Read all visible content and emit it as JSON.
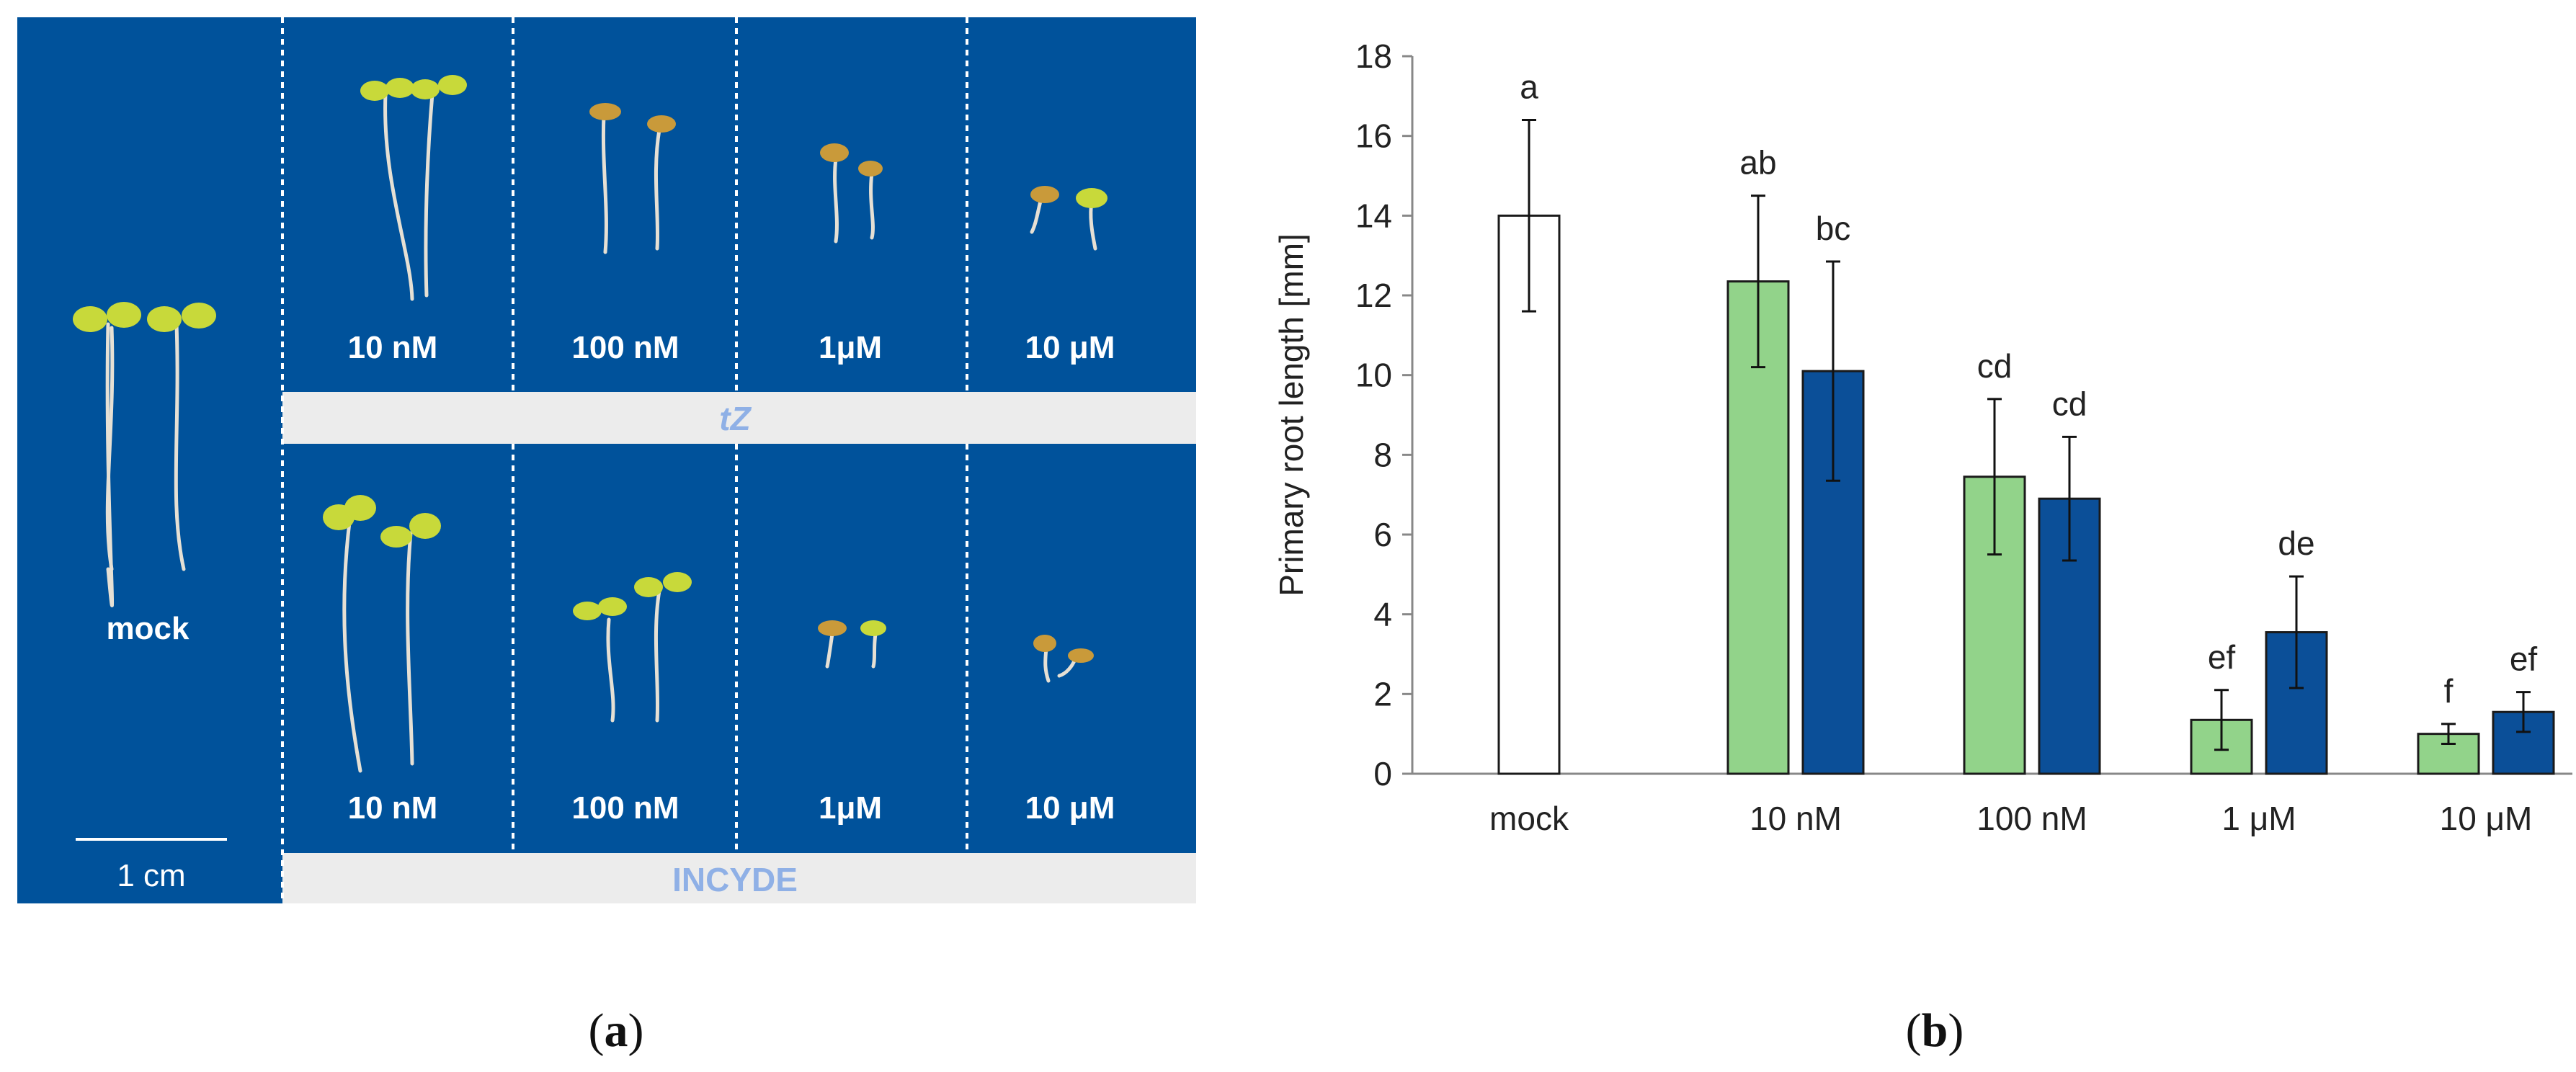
{
  "panel_a": {
    "label": "a",
    "mock_label": "mock",
    "scale_bar_label": "1 cm",
    "top_row_labels": [
      "10 nM",
      "100 nM",
      "1μM",
      "10 μM"
    ],
    "top_row_treatment": "tZ",
    "bottom_row_labels": [
      "10 nM",
      "100 nM",
      "1μM",
      "10 μM"
    ],
    "bottom_row_treatment": "INCYDE",
    "colors": {
      "background": "#00529b",
      "band": "#ececec",
      "band_text": "#8fb0e6",
      "seedling_leaf": "#c8d93a",
      "root": "#e6e0d4"
    }
  },
  "panel_b": {
    "label": "b",
    "chart_data": {
      "type": "bar",
      "ylabel": "Primary root length [mm]",
      "ylim": [
        0,
        18
      ],
      "yticks": [
        0,
        2,
        4,
        6,
        8,
        10,
        12,
        14,
        16,
        18
      ],
      "grid": false,
      "categories": [
        "mock",
        "10 nM",
        "100 nM",
        "1 μM",
        "10 μM"
      ],
      "series": [
        {
          "color": "#ffffff",
          "values": [
            14.0,
            null,
            null,
            null,
            null
          ],
          "errors": [
            2.4,
            null,
            null,
            null,
            null
          ],
          "letters": [
            "a",
            null,
            null,
            null,
            null
          ]
        },
        {
          "color": "#92d38a",
          "values": [
            null,
            12.35,
            7.45,
            1.35,
            1.0
          ],
          "errors": [
            null,
            2.15,
            1.95,
            0.75,
            0.25
          ],
          "letters": [
            null,
            "ab",
            "cd",
            "ef",
            "f"
          ]
        },
        {
          "color": "#0b4f98",
          "values": [
            null,
            10.1,
            6.9,
            3.55,
            1.55
          ],
          "errors": [
            null,
            2.75,
            1.55,
            1.4,
            0.5
          ],
          "letters": [
            null,
            "bc",
            "cd",
            "de",
            "ef"
          ]
        }
      ]
    }
  }
}
